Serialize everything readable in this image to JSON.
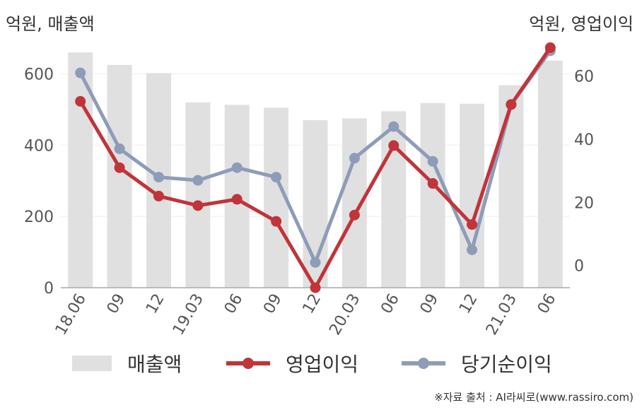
{
  "units": {
    "left": "억원, 매출액",
    "right": "억원, 영업이익"
  },
  "legend": {
    "revenue": "매출액",
    "operating_profit": "영업이익",
    "net_income": "당기순이익"
  },
  "source": "※자료 출처 : AI라씨로(www.rassiro.com)",
  "colors": {
    "revenue": "#e0e0e0",
    "operating_profit": "#c0343a",
    "net_income": "#8e9cb8"
  },
  "chart_data": {
    "type": "bar",
    "categories": [
      "18.06",
      "09",
      "12",
      "19.03",
      "06",
      "09",
      "12",
      "20.03",
      "06",
      "09",
      "12",
      "21.03",
      "06"
    ],
    "series": [
      {
        "name": "매출액",
        "type": "bar",
        "axis": "left",
        "values": [
          660,
          625,
          602,
          520,
          513,
          505,
          470,
          475,
          495,
          518,
          516,
          568,
          637
        ]
      },
      {
        "name": "영업이익",
        "type": "line",
        "axis": "right",
        "values": [
          52,
          31,
          22,
          19,
          21,
          14,
          -7,
          16,
          38,
          26,
          13,
          51,
          69
        ]
      },
      {
        "name": "당기순이익",
        "type": "line",
        "axis": "right",
        "values": [
          61,
          37,
          28,
          27,
          31,
          28,
          1,
          34,
          44,
          33,
          5,
          51,
          68
        ]
      }
    ],
    "y_left": {
      "ticks": [
        0,
        200,
        400,
        600
      ],
      "min": 0,
      "max": 700
    },
    "y_right": {
      "ticks": [
        0,
        20,
        40,
        60
      ],
      "min": -7,
      "max": 72
    },
    "grid": true,
    "legend_position": "bottom"
  }
}
